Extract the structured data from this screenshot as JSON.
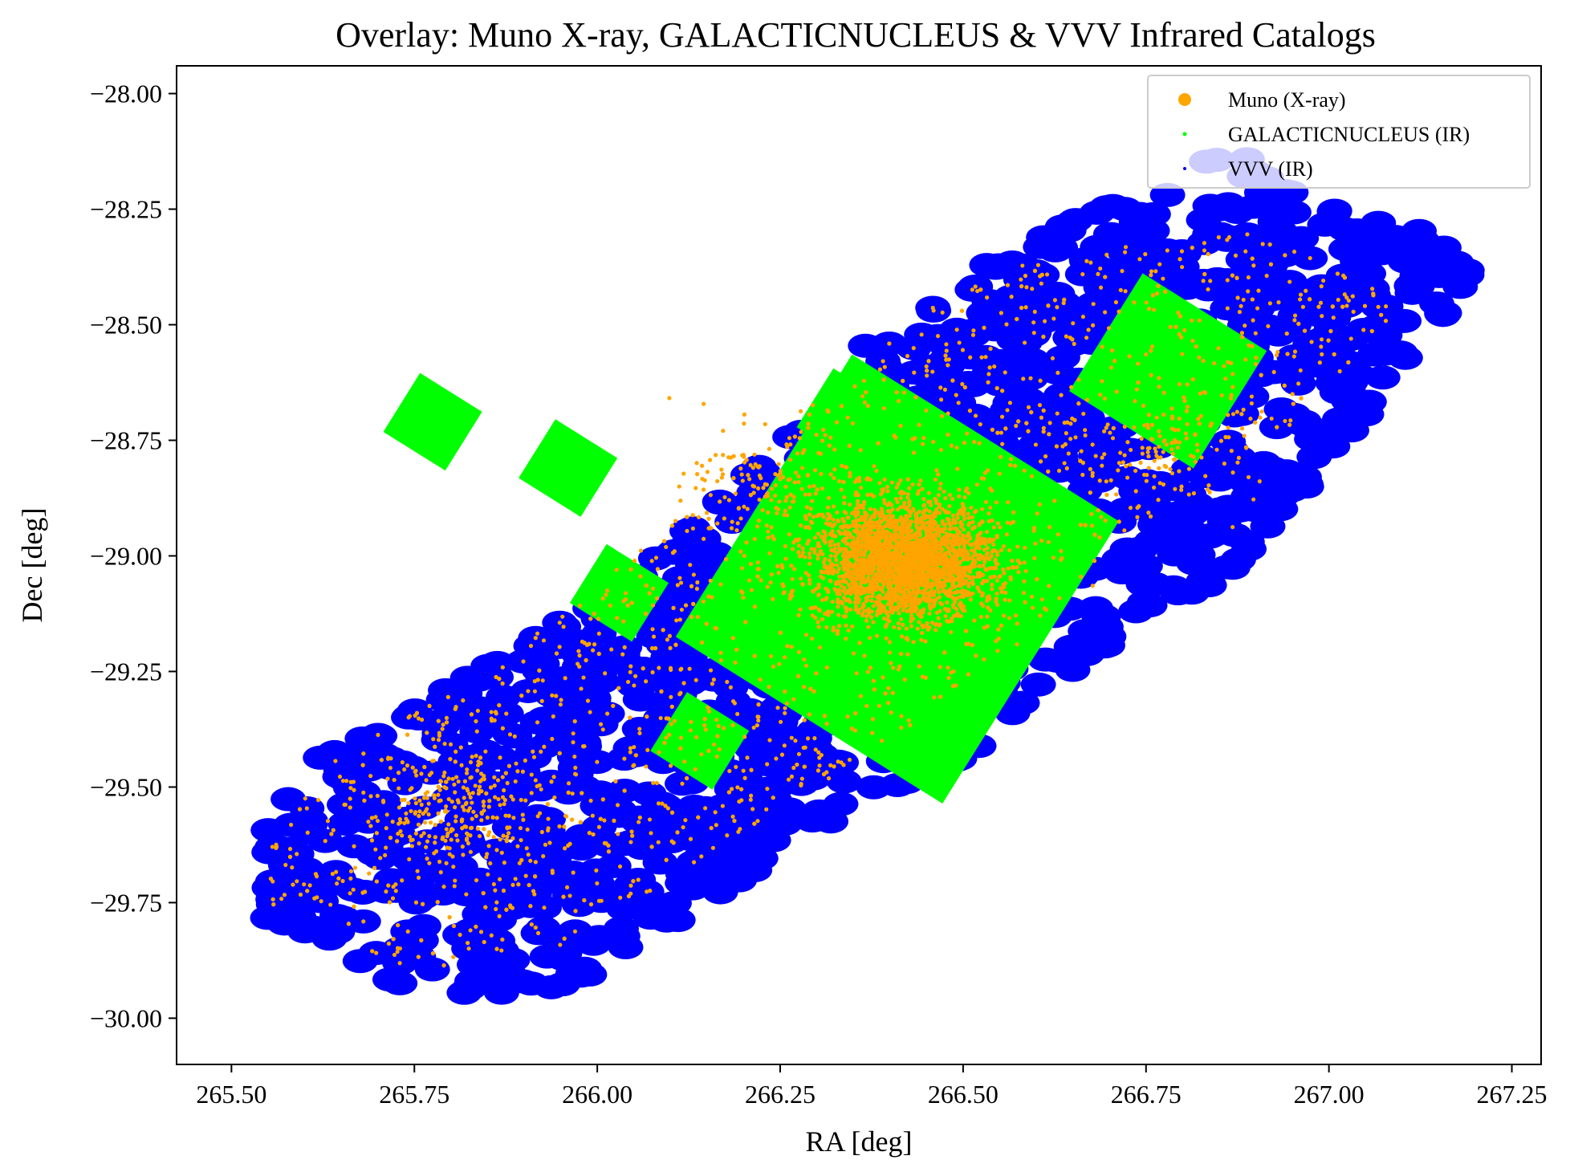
{
  "chart_data": {
    "type": "scatter",
    "title": "Overlay: Muno X-ray, GALACTICNUCLEUS & VVV Infrared Catalogs",
    "xlabel": "RA [deg]",
    "ylabel": "Dec [deg]",
    "xlim": [
      265.425,
      267.29
    ],
    "ylim": [
      -30.1,
      -27.94
    ],
    "xticks": [
      265.5,
      265.75,
      266.0,
      266.25,
      266.5,
      266.75,
      267.0,
      267.25
    ],
    "xtick_labels": [
      "265.50",
      "265.75",
      "266.00",
      "266.25",
      "266.50",
      "266.75",
      "267.00",
      "267.25"
    ],
    "yticks": [
      -28.0,
      -28.25,
      -28.5,
      -28.75,
      -29.0,
      -29.25,
      -29.5,
      -29.75,
      -30.0
    ],
    "ytick_labels": [
      "−28.00",
      "−28.25",
      "−28.50",
      "−28.75",
      "−29.00",
      "−29.25",
      "−29.50",
      "−29.75",
      "−30.00"
    ],
    "legend_position": "top-right",
    "grid": false,
    "series": [
      {
        "name": "Muno (X-ray)",
        "color": "#ffa500",
        "marker": "circle",
        "concentrations": [
          {
            "ra": 266.42,
            "dec": -29.01,
            "count": 2600
          },
          {
            "ra": 266.24,
            "dec": -28.85,
            "count": 140
          },
          {
            "ra": 266.78,
            "dec": -28.77,
            "count": 120
          },
          {
            "ra": 265.8,
            "dec": -29.55,
            "count": 220
          }
        ],
        "extent_polygon": [
          [
            265.55,
            -29.62
          ],
          [
            265.62,
            -29.45
          ],
          [
            265.85,
            -29.25
          ],
          [
            266.2,
            -28.8
          ],
          [
            266.4,
            -28.5
          ],
          [
            266.6,
            -28.35
          ],
          [
            266.9,
            -28.3
          ],
          [
            267.1,
            -28.45
          ],
          [
            267.0,
            -28.65
          ],
          [
            266.7,
            -29.0
          ],
          [
            266.45,
            -29.35
          ],
          [
            266.2,
            -29.6
          ],
          [
            265.95,
            -29.85
          ],
          [
            265.75,
            -29.9
          ],
          [
            265.55,
            -29.75
          ]
        ]
      },
      {
        "name": "GALACTICNUCLEUS (IR)",
        "color": "#00ff00",
        "marker": "point",
        "fields": [
          {
            "ra_center": 265.775,
            "dec_center": -28.71,
            "width_deg": 0.1,
            "height_deg": 0.15
          },
          {
            "ra_center": 265.96,
            "dec_center": -28.81,
            "width_deg": 0.1,
            "height_deg": 0.15
          },
          {
            "ra_center": 266.03,
            "dec_center": -29.08,
            "width_deg": 0.1,
            "height_deg": 0.15
          },
          {
            "ra_center": 266.34,
            "dec_center": -28.7,
            "width_deg": 0.1,
            "height_deg": 0.15
          },
          {
            "ra_center": 266.41,
            "dec_center": -29.05,
            "width_deg": 0.43,
            "height_deg": 0.72
          },
          {
            "ra_center": 266.78,
            "dec_center": -28.6,
            "width_deg": 0.2,
            "height_deg": 0.3
          },
          {
            "ra_center": 266.14,
            "dec_center": -29.4,
            "width_deg": 0.1,
            "height_deg": 0.15
          }
        ]
      },
      {
        "name": "VVV (IR)",
        "color": "#0000ff",
        "marker": "point",
        "extent_polygon": [
          [
            265.54,
            -29.62
          ],
          [
            265.6,
            -29.45
          ],
          [
            265.8,
            -29.28
          ],
          [
            266.05,
            -29.05
          ],
          [
            266.25,
            -28.75
          ],
          [
            266.35,
            -28.55
          ],
          [
            266.55,
            -28.35
          ],
          [
            266.75,
            -28.2
          ],
          [
            266.85,
            -28.1
          ],
          [
            267.0,
            -28.25
          ],
          [
            267.15,
            -28.3
          ],
          [
            267.2,
            -28.4
          ],
          [
            267.1,
            -28.6
          ],
          [
            267.0,
            -28.8
          ],
          [
            266.9,
            -29.0
          ],
          [
            266.7,
            -29.2
          ],
          [
            266.5,
            -29.45
          ],
          [
            266.3,
            -29.6
          ],
          [
            266.1,
            -29.8
          ],
          [
            265.95,
            -29.95
          ],
          [
            265.75,
            -29.95
          ],
          [
            265.55,
            -29.8
          ]
        ]
      }
    ]
  }
}
